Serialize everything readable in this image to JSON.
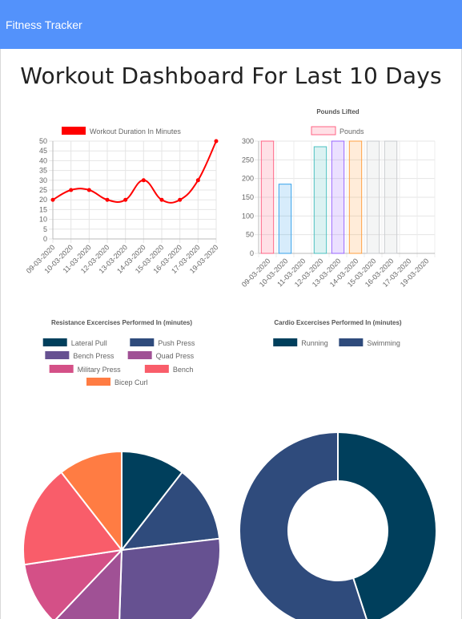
{
  "navbar": {
    "brand": "Fitness Tracker",
    "color": "#5392fb"
  },
  "page": {
    "title": "Workout Dashboard For Last 10 Days"
  },
  "chart_data": [
    {
      "id": "duration",
      "type": "line",
      "title": "",
      "legend": {
        "label": "Workout Duration In Minutes",
        "color": "#ff0000",
        "position": "top"
      },
      "categories": [
        "09-03-2020",
        "10-03-2020",
        "11-03-2020",
        "12-03-2020",
        "13-03-2020",
        "14-03-2020",
        "15-03-2020",
        "16-03-2020",
        "17-03-2020",
        "19-03-2020"
      ],
      "values": [
        20,
        25,
        25,
        20,
        20,
        30,
        20,
        20,
        30,
        50
      ],
      "ylim": [
        0,
        50
      ],
      "yticks": [
        0,
        5,
        10,
        15,
        20,
        25,
        30,
        35,
        40,
        45,
        50
      ],
      "grid": true
    },
    {
      "id": "pounds",
      "type": "bar",
      "title": "Pounds Lifted",
      "legend": {
        "label": "Pounds",
        "color": "#ff6384",
        "position": "top"
      },
      "categories": [
        "09-03-2020",
        "10-03-2020",
        "11-03-2020",
        "12-03-2020",
        "13-03-2020",
        "14-03-2020",
        "15-03-2020",
        "16-03-2020",
        "17-03-2020",
        "19-03-2020"
      ],
      "values": [
        300,
        185,
        0,
        285,
        300,
        300,
        300,
        300,
        0,
        0
      ],
      "bar_colors": [
        "#ff6384",
        "#36a2eb",
        "#ffce56",
        "#4bc0c0",
        "#9966ff",
        "#ff9f40",
        "#c9cbcf",
        "#c9cbcf",
        "#c9cbcf",
        "#c9cbcf"
      ],
      "ylim": [
        0,
        300
      ],
      "yticks": [
        0,
        50,
        100,
        150,
        200,
        250,
        300
      ],
      "grid": true
    },
    {
      "id": "resistance",
      "type": "pie",
      "title": "Resistance Excercises Performed In (minutes)",
      "labels": [
        "Lateral Pull",
        "Push Press",
        "Bench Press",
        "Quad Press",
        "Military Press",
        "Bench",
        "Bicep Curl"
      ],
      "values": [
        10,
        12,
        26,
        11,
        10,
        16,
        10
      ],
      "colors": [
        "#003f5c",
        "#2f4b7c",
        "#665191",
        "#a05195",
        "#d45087",
        "#f95d6a",
        "#ff7c43"
      ]
    },
    {
      "id": "cardio",
      "type": "pie",
      "variant": "doughnut",
      "title": "Cardio Excercises Performed In (minutes)",
      "labels": [
        "Running",
        "Swimming"
      ],
      "values": [
        45,
        55
      ],
      "colors": [
        "#003f5c",
        "#2f4b7c"
      ]
    }
  ]
}
